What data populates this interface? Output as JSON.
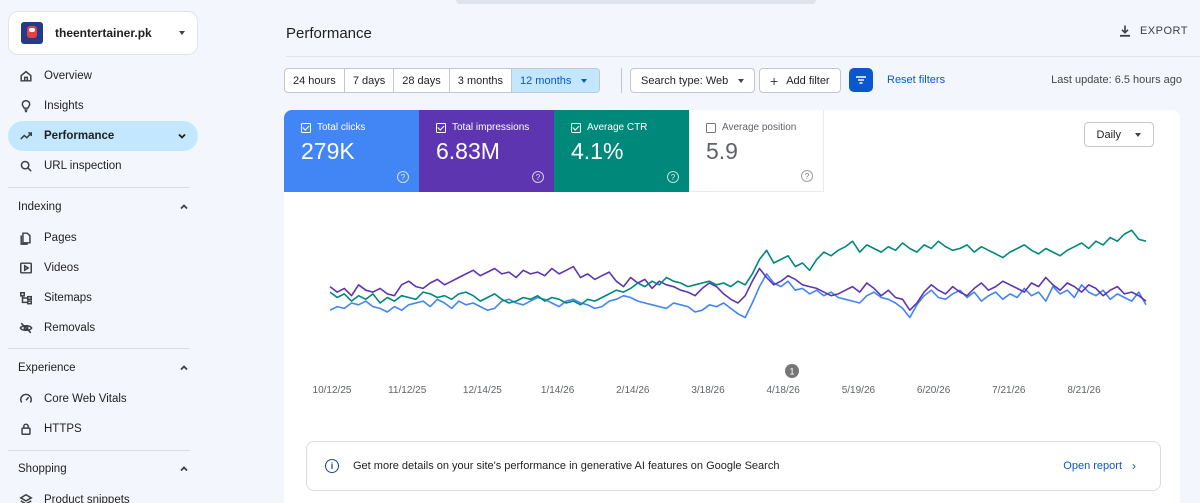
{
  "property": {
    "name": "theentertainer.pk"
  },
  "sidebar": {
    "items": [
      {
        "label": "Overview",
        "icon": "home-icon"
      },
      {
        "label": "Insights",
        "icon": "lightbulb-icon"
      },
      {
        "label": "Performance",
        "icon": "trending-up-icon",
        "active": true
      },
      {
        "label": "URL inspection",
        "icon": "search-icon"
      }
    ],
    "indexing": {
      "title": "Indexing",
      "items": [
        {
          "label": "Pages",
          "icon": "pages-icon"
        },
        {
          "label": "Videos",
          "icon": "video-icon"
        },
        {
          "label": "Sitemaps",
          "icon": "sitemap-icon"
        },
        {
          "label": "Removals",
          "icon": "eye-off-icon"
        }
      ]
    },
    "experience": {
      "title": "Experience",
      "items": [
        {
          "label": "Core Web Vitals",
          "icon": "gauge-icon"
        },
        {
          "label": "HTTPS",
          "icon": "lock-icon"
        }
      ]
    },
    "shopping": {
      "title": "Shopping",
      "items": [
        {
          "label": "Product snippets",
          "icon": "layers-icon"
        }
      ]
    }
  },
  "header": {
    "title": "Performance",
    "export_label": "EXPORT"
  },
  "toolbar": {
    "ranges": [
      "24 hours",
      "7 days",
      "28 days",
      "3 months",
      "12 months"
    ],
    "selected_range": "12 months",
    "search_type": "Search type: Web",
    "add_filter": "Add filter",
    "reset_filters": "Reset filters",
    "last_update": "Last update: 6.5 hours ago"
  },
  "metrics": [
    {
      "label": "Total clicks",
      "value": "279K",
      "checked": true,
      "color": "#4285f4"
    },
    {
      "label": "Total impressions",
      "value": "6.83M",
      "checked": true,
      "color": "#5e35b1"
    },
    {
      "label": "Average CTR",
      "value": "4.1%",
      "checked": true,
      "color": "#00897b"
    },
    {
      "label": "Average position",
      "value": "5.9",
      "checked": false,
      "color": "#ffffff"
    }
  ],
  "granularity": "Daily",
  "annotation_marker": "1",
  "chart_data": {
    "type": "line",
    "x_ticks": [
      "10/12/25",
      "11/12/25",
      "12/14/25",
      "1/14/26",
      "2/14/26",
      "3/18/26",
      "4/18/26",
      "5/19/26",
      "6/20/26",
      "7/21/26",
      "8/21/26"
    ],
    "series": [
      {
        "name": "Total clicks",
        "color": "#4285f4",
        "values": [
          42,
          44,
          43,
          46,
          45,
          47,
          44,
          43,
          41,
          44,
          42,
          45,
          46,
          47,
          44,
          48,
          46,
          43,
          47,
          45,
          46,
          44,
          42,
          43,
          47,
          48,
          46,
          45,
          47,
          49,
          48,
          46,
          44,
          47,
          48,
          46,
          45,
          43,
          44,
          47,
          48,
          50,
          49,
          47,
          46,
          45,
          44,
          43,
          46,
          45,
          44,
          41,
          42,
          45,
          44,
          46,
          43,
          40,
          38,
          46,
          55,
          62,
          57,
          55,
          58,
          53,
          54,
          51,
          53,
          50,
          52,
          49,
          48,
          47,
          46,
          50,
          52,
          49,
          48,
          46,
          43,
          38,
          45,
          50,
          53,
          49,
          48,
          51,
          53,
          49,
          52,
          47,
          50,
          52,
          48,
          51,
          49,
          54,
          50,
          52,
          47,
          55,
          51,
          53,
          49,
          56,
          52,
          50,
          53,
          48,
          51,
          49,
          47,
          52,
          45
        ]
      },
      {
        "name": "Total impressions",
        "color": "#5e35b1",
        "values": [
          55,
          52,
          54,
          50,
          56,
          53,
          52,
          54,
          51,
          50,
          56,
          58,
          55,
          54,
          57,
          59,
          56,
          58,
          60,
          62,
          64,
          61,
          63,
          65,
          62,
          63,
          60,
          64,
          62,
          63,
          61,
          65,
          62,
          64,
          66,
          60,
          62,
          59,
          61,
          63,
          58,
          55,
          60,
          57,
          59,
          54,
          58,
          56,
          55,
          53,
          52,
          50,
          54,
          57,
          55,
          51,
          48,
          46,
          50,
          58,
          65,
          60,
          56,
          58,
          61,
          59,
          56,
          55,
          54,
          52,
          50,
          51,
          53,
          55,
          52,
          57,
          54,
          50,
          53,
          49,
          48,
          42,
          46,
          52,
          56,
          53,
          51,
          55,
          52,
          50,
          54,
          57,
          53,
          55,
          58,
          56,
          54,
          52,
          57,
          55,
          60,
          56,
          53,
          57,
          55,
          52,
          56,
          54,
          50,
          53,
          55,
          51,
          52,
          50,
          47
        ]
      },
      {
        "name": "Average CTR",
        "color": "#00897b",
        "values": [
          52,
          49,
          51,
          47,
          50,
          48,
          51,
          46,
          49,
          47,
          50,
          49,
          48,
          52,
          51,
          49,
          50,
          48,
          51,
          52,
          50,
          47,
          49,
          51,
          48,
          46,
          47,
          49,
          48,
          50,
          47,
          49,
          48,
          46,
          47,
          45,
          48,
          47,
          49,
          51,
          53,
          52,
          54,
          57,
          55,
          58,
          56,
          60,
          58,
          57,
          55,
          56,
          57,
          58,
          56,
          57,
          55,
          58,
          56,
          62,
          70,
          75,
          68,
          70,
          72,
          66,
          68,
          64,
          70,
          74,
          72,
          75,
          77,
          80,
          74,
          78,
          76,
          74,
          77,
          75,
          79,
          76,
          74,
          78,
          76,
          80,
          77,
          75,
          76,
          78,
          74,
          77,
          75,
          73,
          71,
          74,
          76,
          78,
          75,
          73,
          76,
          74,
          72,
          75,
          77,
          79,
          76,
          80,
          78,
          82,
          80,
          84,
          86,
          81,
          80
        ]
      }
    ]
  },
  "ai_notice": {
    "text": "Get more details on your site's performance in generative AI features on Google Search",
    "link": "Open report"
  }
}
